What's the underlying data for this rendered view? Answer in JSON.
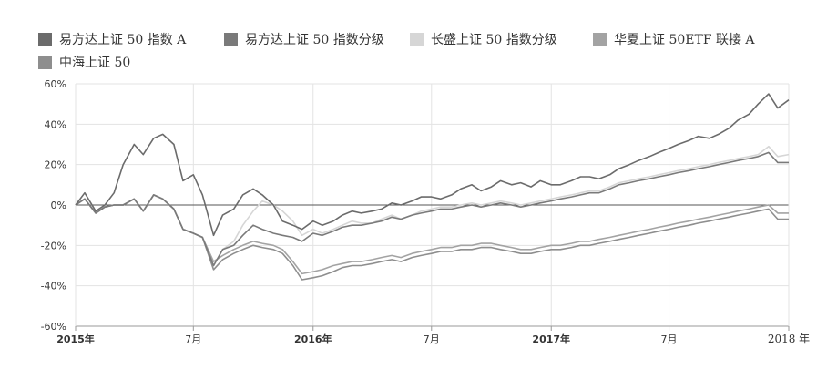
{
  "chart_data": {
    "type": "line",
    "title": "",
    "xlabel": "",
    "ylabel": "",
    "x_range": [
      "2015-01-01",
      "2018-01-01"
    ],
    "ylim": [
      -60,
      60
    ],
    "y_unit": "%",
    "grid": true,
    "legend_position": "top",
    "yticks": [
      "60%",
      "40%",
      "20%",
      "0%",
      "-20%",
      "-40%",
      "-60%"
    ],
    "xticks": [
      {
        "label": "2015年",
        "date": "2015-01-01",
        "major": true
      },
      {
        "label": "7月",
        "date": "2015-07-01",
        "major": false
      },
      {
        "label": "2016年",
        "date": "2016-01-01",
        "major": true
      },
      {
        "label": "7月",
        "date": "2016-07-01",
        "major": false
      },
      {
        "label": "2017年",
        "date": "2017-01-01",
        "major": true
      },
      {
        "label": "7月",
        "date": "2017-07-01",
        "major": false
      },
      {
        "label": "2018 年",
        "date": "2018-01-01",
        "major": false
      }
    ],
    "x": [
      "2015-01-01",
      "2015-01-15",
      "2015-02-01",
      "2015-02-15",
      "2015-03-01",
      "2015-03-15",
      "2015-04-01",
      "2015-04-15",
      "2015-05-01",
      "2015-05-15",
      "2015-06-01",
      "2015-06-15",
      "2015-07-01",
      "2015-07-15",
      "2015-08-01",
      "2015-08-15",
      "2015-09-01",
      "2015-09-15",
      "2015-10-01",
      "2015-10-15",
      "2015-11-01",
      "2015-11-15",
      "2015-12-01",
      "2015-12-15",
      "2016-01-01",
      "2016-01-15",
      "2016-02-01",
      "2016-02-15",
      "2016-03-01",
      "2016-03-15",
      "2016-04-01",
      "2016-04-15",
      "2016-05-01",
      "2016-05-15",
      "2016-06-01",
      "2016-06-15",
      "2016-07-01",
      "2016-07-15",
      "2016-08-01",
      "2016-08-15",
      "2016-09-01",
      "2016-09-15",
      "2016-10-01",
      "2016-10-15",
      "2016-11-01",
      "2016-11-15",
      "2016-12-01",
      "2016-12-15",
      "2017-01-01",
      "2017-01-15",
      "2017-02-01",
      "2017-02-15",
      "2017-03-01",
      "2017-03-15",
      "2017-04-01",
      "2017-04-15",
      "2017-05-01",
      "2017-05-15",
      "2017-06-01",
      "2017-06-15",
      "2017-07-01",
      "2017-07-15",
      "2017-08-01",
      "2017-08-15",
      "2017-09-01",
      "2017-09-15",
      "2017-10-01",
      "2017-10-15",
      "2017-11-01",
      "2017-11-15",
      "2017-12-01",
      "2017-12-15",
      "2018-01-01"
    ],
    "series": [
      {
        "name": "易方达上证 50 指数 A",
        "color": "#6b6b6b",
        "values": [
          0,
          6,
          -3,
          0,
          6,
          20,
          30,
          25,
          33,
          35,
          30,
          12,
          15,
          5,
          -15,
          -5,
          -2,
          5,
          8,
          5,
          0,
          -8,
          -10,
          -12,
          -8,
          -10,
          -8,
          -5,
          -3,
          -4,
          -3,
          -2,
          1,
          0,
          2,
          4,
          4,
          3,
          5,
          8,
          10,
          7,
          9,
          12,
          10,
          11,
          9,
          12,
          10,
          10,
          12,
          14,
          14,
          13,
          15,
          18,
          20,
          22,
          24,
          26,
          28,
          30,
          32,
          34,
          33,
          35,
          38,
          42,
          45,
          50,
          55,
          48,
          52
        ]
      },
      {
        "name": "易方达上证 50 指数分级",
        "color": "#7a7a7a",
        "values": [
          0,
          3,
          -4,
          -1,
          0,
          0,
          3,
          -3,
          5,
          3,
          -2,
          -12,
          -14,
          -16,
          -30,
          -22,
          -20,
          -15,
          -10,
          -12,
          -14,
          -15,
          -16,
          -18,
          -14,
          -15,
          -13,
          -11,
          -10,
          -10,
          -9,
          -8,
          -6,
          -7,
          -5,
          -4,
          -3,
          -2,
          -2,
          -1,
          0,
          -1,
          0,
          1,
          0,
          -1,
          0,
          1,
          2,
          3,
          4,
          5,
          6,
          6,
          8,
          10,
          11,
          12,
          13,
          14,
          15,
          16,
          17,
          18,
          19,
          20,
          21,
          22,
          23,
          24,
          26,
          21,
          21
        ]
      },
      {
        "name": "长盛上证 50 指数分级",
        "color": "#d6d6d6",
        "values": [
          0,
          3,
          -4,
          -1,
          0,
          0,
          3,
          -3,
          5,
          3,
          -2,
          -12,
          -14,
          -16,
          -30,
          -22,
          -18,
          -10,
          -3,
          2,
          0,
          -3,
          -8,
          -15,
          -12,
          -14,
          -12,
          -10,
          -8,
          -9,
          -9,
          -7,
          -5,
          -7,
          -5,
          -3,
          -2,
          -1,
          -1,
          0,
          1,
          0,
          1,
          2,
          1,
          0,
          1,
          2,
          3,
          4,
          5,
          6,
          7,
          7,
          9,
          11,
          12,
          13,
          14,
          15,
          16,
          17,
          18,
          19,
          20,
          21,
          22,
          23,
          24,
          25,
          29,
          24,
          25
        ]
      },
      {
        "name": "华夏上证 50ETF 联接 A",
        "color": "#a3a3a3",
        "values": [
          0,
          3,
          -4,
          -1,
          0,
          0,
          3,
          -3,
          5,
          3,
          -2,
          -12,
          -14,
          -16,
          -28,
          -25,
          -22,
          -20,
          -18,
          -19,
          -20,
          -22,
          -28,
          -34,
          -33,
          -32,
          -30,
          -29,
          -28,
          -28,
          -27,
          -26,
          -25,
          -26,
          -24,
          -23,
          -22,
          -21,
          -21,
          -20,
          -20,
          -19,
          -19,
          -20,
          -21,
          -22,
          -22,
          -21,
          -20,
          -20,
          -19,
          -18,
          -18,
          -17,
          -16,
          -15,
          -14,
          -13,
          -12,
          -11,
          -10,
          -9,
          -8,
          -7,
          -6,
          -5,
          -4,
          -3,
          -2,
          -1,
          0,
          -4,
          -4
        ]
      },
      {
        "name": "中海上证 50",
        "color": "#8e8e8e",
        "values": [
          0,
          3,
          -4,
          -1,
          0,
          0,
          3,
          -3,
          5,
          3,
          -2,
          -12,
          -14,
          -16,
          -32,
          -27,
          -24,
          -22,
          -20,
          -21,
          -22,
          -24,
          -30,
          -37,
          -36,
          -35,
          -33,
          -31,
          -30,
          -30,
          -29,
          -28,
          -27,
          -28,
          -26,
          -25,
          -24,
          -23,
          -23,
          -22,
          -22,
          -21,
          -21,
          -22,
          -23,
          -24,
          -24,
          -23,
          -22,
          -22,
          -21,
          -20,
          -20,
          -19,
          -18,
          -17,
          -16,
          -15,
          -14,
          -13,
          -12,
          -11,
          -10,
          -9,
          -8,
          -7,
          -6,
          -5,
          -4,
          -3,
          -2,
          -7,
          -7
        ]
      }
    ]
  }
}
